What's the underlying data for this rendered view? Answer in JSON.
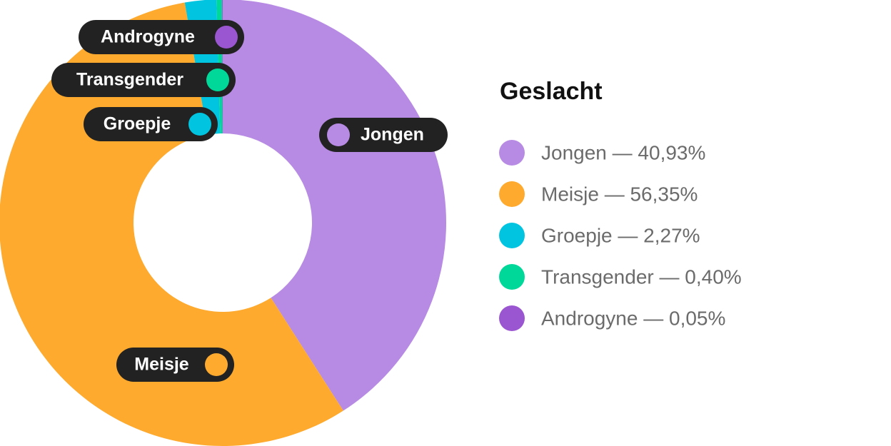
{
  "chart_data": {
    "type": "donut",
    "legend_title": "Geslacht",
    "categories": [
      "Jongen",
      "Meisje",
      "Groepje",
      "Transgender",
      "Androgyne"
    ],
    "values": [
      40.93,
      56.35,
      2.27,
      0.4,
      0.05
    ],
    "legend_labels": [
      "Jongen — 40,93%",
      "Meisje — 56,35%",
      "Groepje — 2,27%",
      "Transgender — 0,40%",
      "Androgyne — 0,05%"
    ],
    "colors": [
      "#b78be4",
      "#fdaa2f",
      "#00c4e0",
      "#00d89a",
      "#9a55d0"
    ],
    "legend_position": "right"
  }
}
